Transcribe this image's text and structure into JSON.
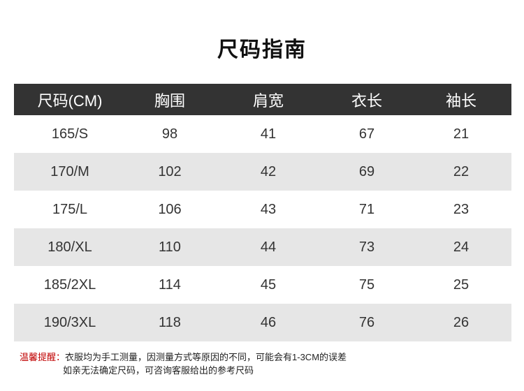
{
  "title": "尺码指南",
  "table": {
    "headers": [
      "尺码(CM)",
      "胸围",
      "肩宽",
      "衣长",
      "袖长"
    ],
    "rows": [
      [
        "165/S",
        "98",
        "41",
        "67",
        "21"
      ],
      [
        "170/M",
        "102",
        "42",
        "69",
        "22"
      ],
      [
        "175/L",
        "106",
        "43",
        "71",
        "23"
      ],
      [
        "180/XL",
        "110",
        "44",
        "73",
        "24"
      ],
      [
        "185/2XL",
        "114",
        "45",
        "75",
        "25"
      ],
      [
        "190/3XL",
        "118",
        "46",
        "76",
        "26"
      ]
    ]
  },
  "note": {
    "label": "温馨提醒：",
    "line1": "衣服均为手工测量，因测量方式等原因的不同，可能会有1-3CM的误差",
    "line2": "如亲无法确定尺码，可咨询客服给出的参考尺码"
  },
  "colors": {
    "header_bg": "#333333",
    "alt_row_bg": "#e6e6e6",
    "note_label": "#c00000"
  }
}
